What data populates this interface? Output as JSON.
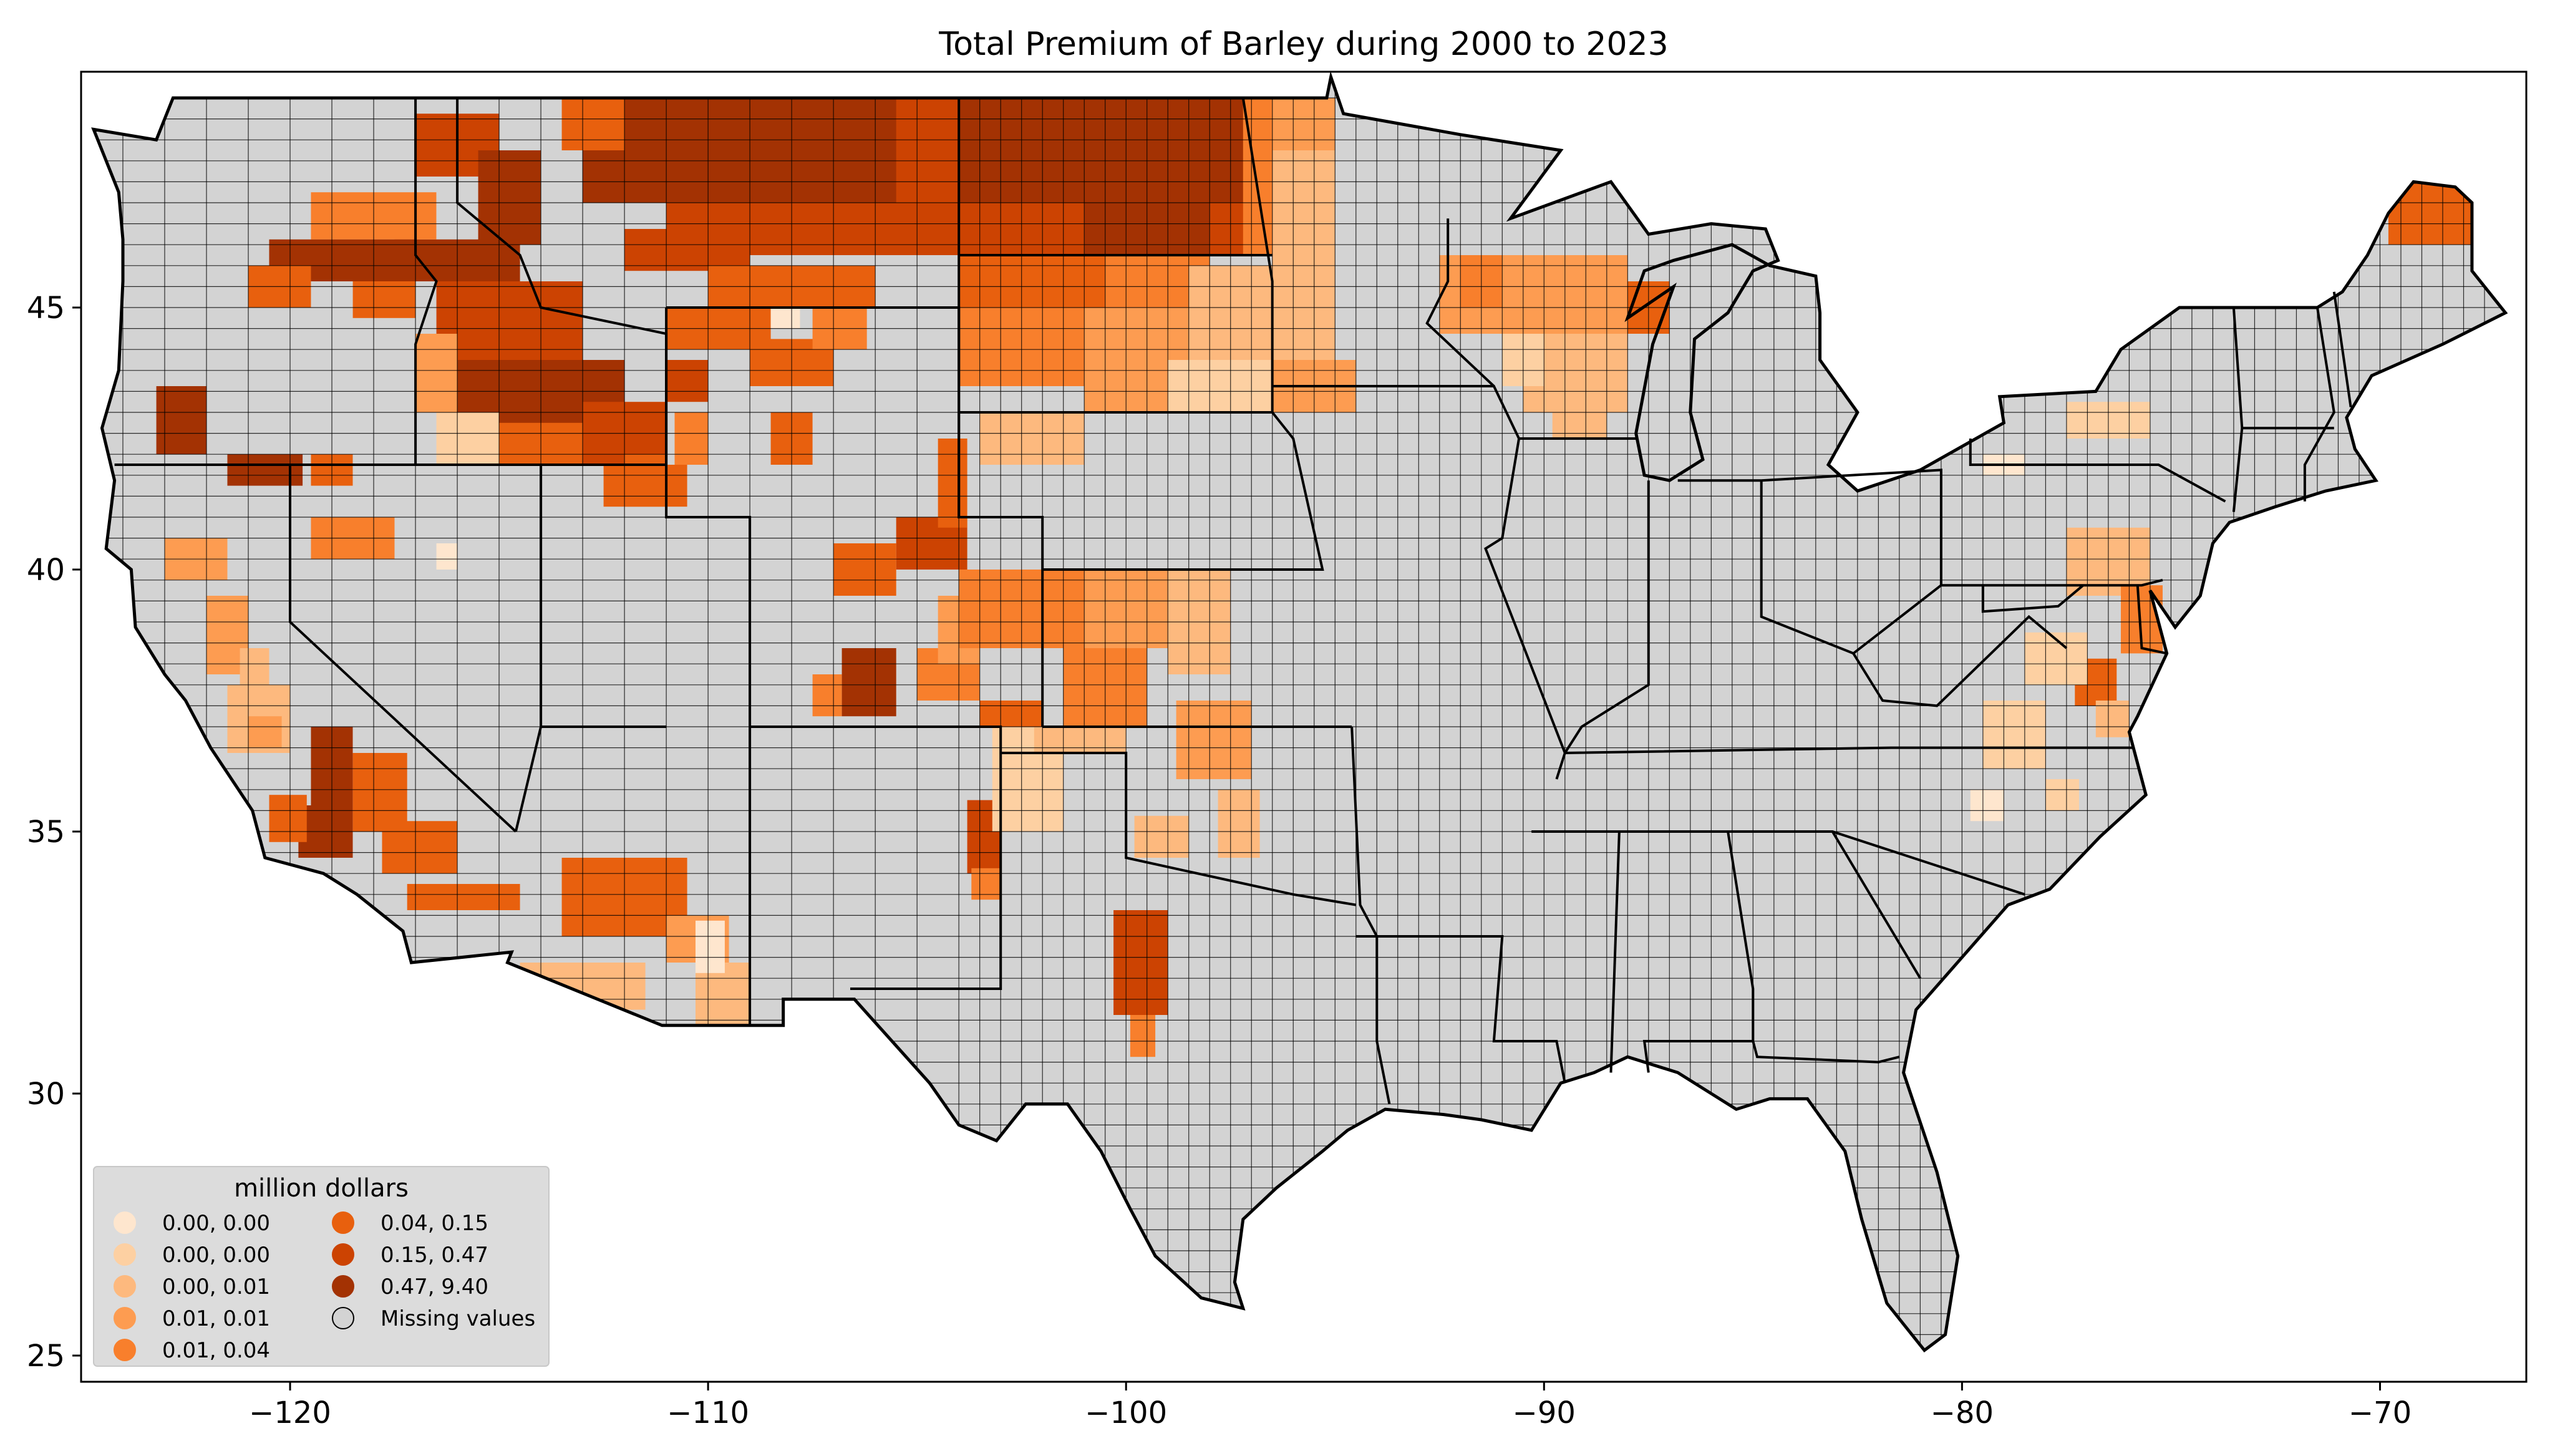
{
  "title": "Total  Premium of Barley during 2000 to 2023",
  "x_axis": {
    "range": [
      -125,
      -66.5
    ],
    "ticks": [
      {
        "value": -120,
        "label": "−120"
      },
      {
        "value": -110,
        "label": "−110"
      },
      {
        "value": -100,
        "label": "−100"
      },
      {
        "value": -90,
        "label": "−90"
      },
      {
        "value": -80,
        "label": "−80"
      },
      {
        "value": -70,
        "label": "−70"
      }
    ]
  },
  "y_axis": {
    "range": [
      24.5,
      49.5
    ],
    "ticks": [
      {
        "value": 25,
        "label": "25"
      },
      {
        "value": 30,
        "label": "30"
      },
      {
        "value": 35,
        "label": "35"
      },
      {
        "value": 40,
        "label": "40"
      },
      {
        "value": 45,
        "label": "45"
      }
    ]
  },
  "legend": {
    "title": "million dollars",
    "placement": "lower-left",
    "items": [
      {
        "label": "0.00, 0.00",
        "color": "#fee6ce"
      },
      {
        "label": "0.00, 0.00",
        "color": "#fdd0a2"
      },
      {
        "label": "0.00, 0.01",
        "color": "#fdb97e"
      },
      {
        "label": "0.01, 0.01",
        "color": "#fd9c51"
      },
      {
        "label": "0.01, 0.04",
        "color": "#f87f2c"
      },
      {
        "label": "0.04, 0.15",
        "color": "#e8600e"
      },
      {
        "label": "0.15, 0.47",
        "color": "#cc4302"
      },
      {
        "label": "0.47, 9.40",
        "color": "#a33203"
      },
      {
        "label": "Missing values",
        "color": "#d3d3d3"
      }
    ]
  },
  "colors": {
    "missing": "#d3d3d3",
    "legend_bg": "#dcdcdc",
    "border": "#000000"
  },
  "chart_data": {
    "type": "choropleth",
    "variable": "Total Premium of Barley (million dollars)",
    "regions": [
      {
        "region": "northern Montana",
        "class": "0.47, 9.40"
      },
      {
        "region": "North Dakota (north/central)",
        "class": "0.47, 9.40"
      },
      {
        "region": "northern Idaho / eastern Washington",
        "class": "0.47, 9.40"
      },
      {
        "region": "southern Idaho",
        "class": "0.47, 9.40"
      },
      {
        "region": "southern Oregon",
        "class": "0.47, 9.40"
      },
      {
        "region": "south-central Colorado",
        "class": "0.47, 9.40"
      },
      {
        "region": "southern California",
        "class": "0.47, 9.40"
      },
      {
        "region": "central Montana / Wyoming",
        "class": "0.15, 0.47"
      },
      {
        "region": "northern Colorado / Nebraska panhandle",
        "class": "0.15, 0.47"
      },
      {
        "region": "north Texas",
        "class": "0.15, 0.47"
      },
      {
        "region": "Maine (Aroostook)",
        "class": "0.04, 0.15"
      },
      {
        "region": "Arizona",
        "class": "0.04, 0.15"
      },
      {
        "region": "South Dakota / Minnesota",
        "class": "0.01, 0.04"
      },
      {
        "region": "Kansas",
        "class": "0.01, 0.04"
      },
      {
        "region": "Wisconsin",
        "class": "0.01, 0.01"
      },
      {
        "region": "Pennsylvania / Maryland / Virginia",
        "class": "0.00, 0.01"
      }
    ]
  }
}
